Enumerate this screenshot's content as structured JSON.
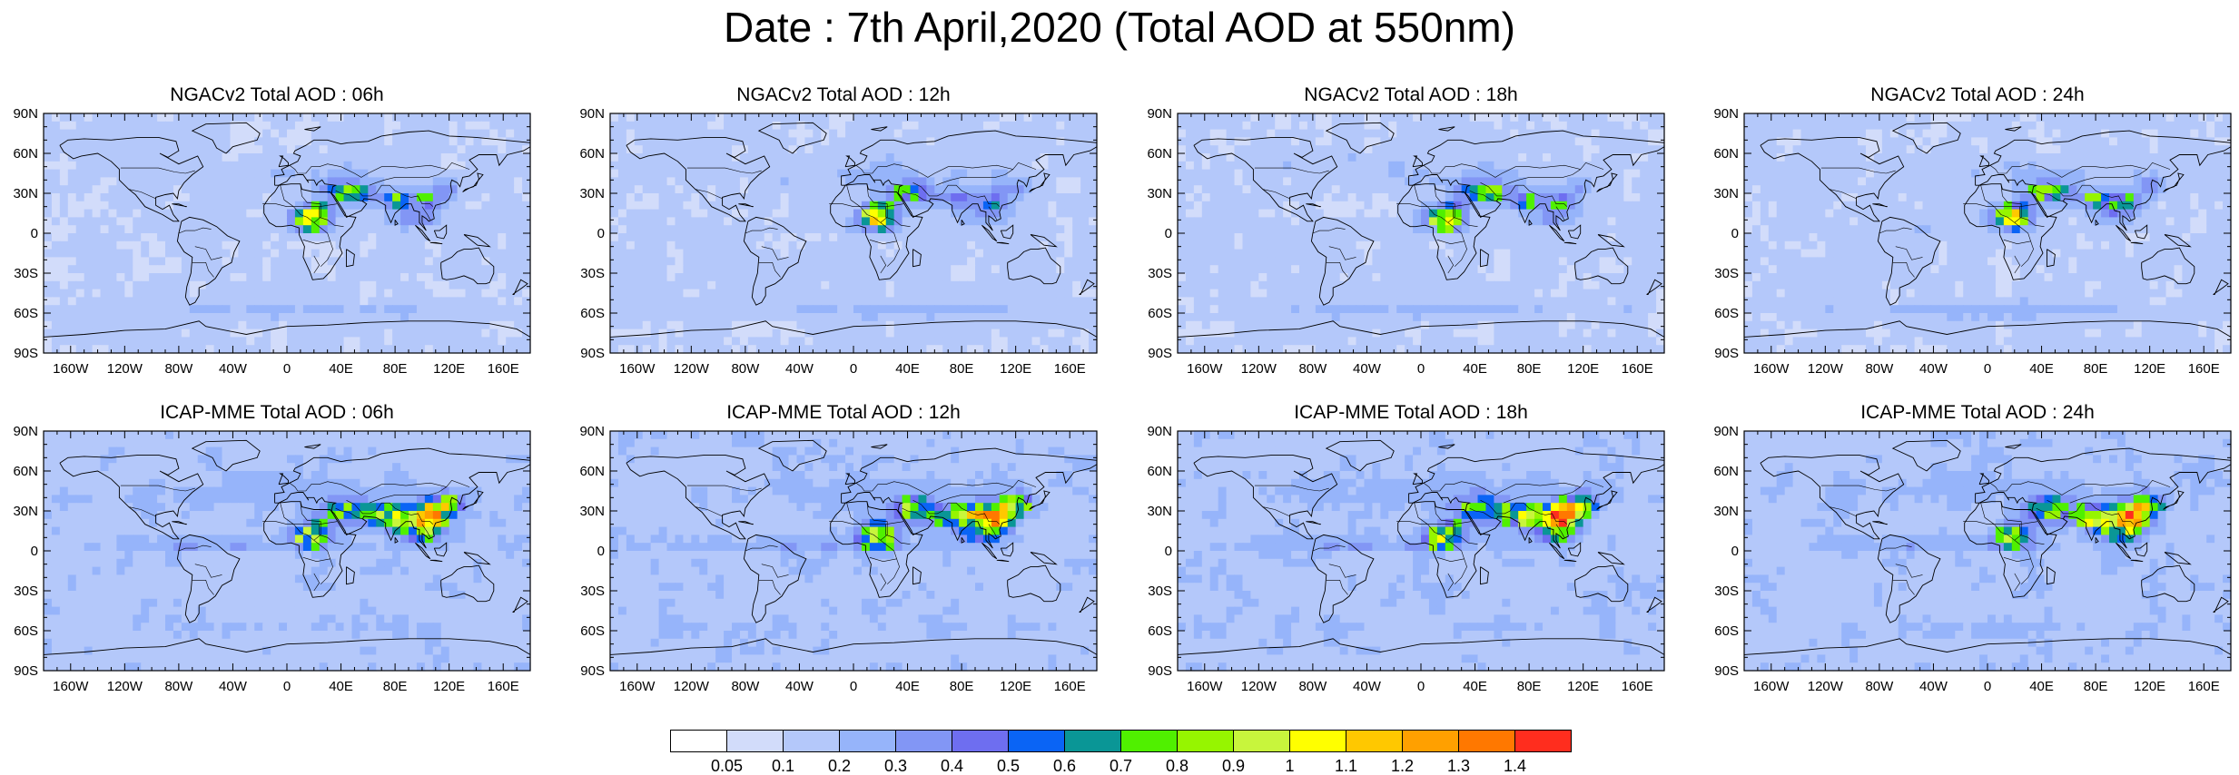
{
  "title": "Date : 7th April,2020 (Total AOD at 550nm)",
  "panels": [
    {
      "title": "NGACv2 Total AOD : 06h"
    },
    {
      "title": "NGACv2 Total AOD : 12h"
    },
    {
      "title": "NGACv2 Total AOD : 18h"
    },
    {
      "title": "NGACv2 Total AOD : 24h"
    },
    {
      "title": "ICAP-MME Total AOD : 06h"
    },
    {
      "title": "ICAP-MME Total AOD : 12h"
    },
    {
      "title": "ICAP-MME Total AOD : 18h"
    },
    {
      "title": "ICAP-MME Total AOD : 24h"
    }
  ],
  "axes": {
    "lat_ticks": [
      "90N",
      "60N",
      "30N",
      "0",
      "30S",
      "60S",
      "90S"
    ],
    "lon_ticks": [
      "160W",
      "120W",
      "80W",
      "40W",
      "0",
      "40E",
      "80E",
      "120E",
      "160E"
    ]
  },
  "colorbar": {
    "labels": [
      "0.05",
      "0.1",
      "0.2",
      "0.3",
      "0.4",
      "0.5",
      "0.6",
      "0.7",
      "0.8",
      "0.9",
      "1",
      "1.1",
      "1.2",
      "1.3",
      "1.4"
    ],
    "colors": [
      "#ffffff",
      "#d2dcfa",
      "#b4c8fa",
      "#96b4fa",
      "#8296f5",
      "#6e6ef0",
      "#0a64f5",
      "#0a9696",
      "#50f000",
      "#96f500",
      "#c8f53c",
      "#ffff00",
      "#ffc800",
      "#ffa000",
      "#ff7800",
      "#ff2d1e"
    ]
  }
}
